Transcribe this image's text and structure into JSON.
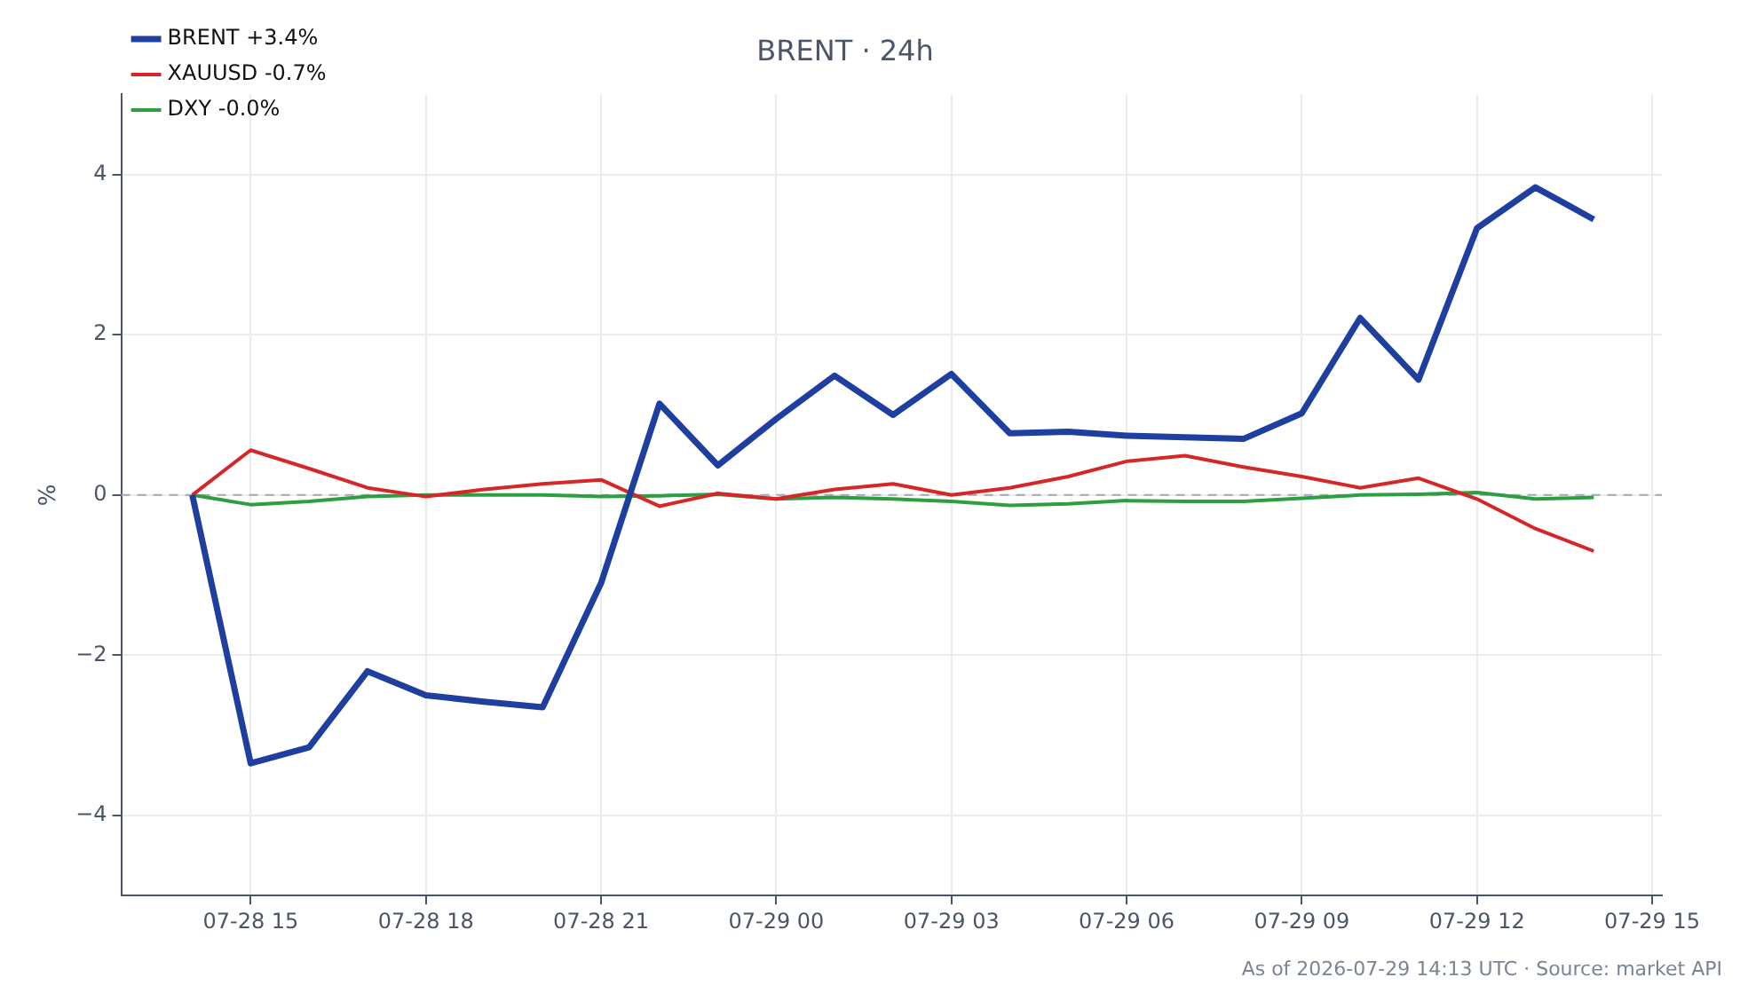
{
  "chart_data": {
    "type": "line",
    "title": "BRENT · 24h",
    "ylabel": "%",
    "x": [
      "2026-07-28T14:00",
      "2026-07-28T15:00",
      "2026-07-28T16:00",
      "2026-07-28T17:00",
      "2026-07-28T18:00",
      "2026-07-28T19:00",
      "2026-07-28T20:00",
      "2026-07-28T21:00",
      "2026-07-28T22:00",
      "2026-07-28T23:00",
      "2026-07-29T00:00",
      "2026-07-29T01:00",
      "2026-07-29T02:00",
      "2026-07-29T03:00",
      "2026-07-29T04:00",
      "2026-07-29T05:00",
      "2026-07-29T06:00",
      "2026-07-29T07:00",
      "2026-07-29T08:00",
      "2026-07-29T09:00",
      "2026-07-29T10:00",
      "2026-07-29T11:00",
      "2026-07-29T12:00",
      "2026-07-29T13:00",
      "2026-07-29T14:00"
    ],
    "series": [
      {
        "name": "BRENT +3.4%",
        "color": "#1f3fa0",
        "values": [
          0,
          -3.35,
          -3.15,
          -2.2,
          -2.5,
          -2.58,
          -2.65,
          -1.1,
          1.14,
          0.37,
          0.95,
          1.49,
          1.0,
          1.51,
          0.77,
          0.79,
          0.74,
          0.72,
          0.7,
          1.02,
          2.21,
          1.44,
          3.33,
          3.84,
          3.44
        ]
      },
      {
        "name": "XAUUSD -0.7%",
        "color": "#d62728",
        "values": [
          0,
          0.56,
          0.33,
          0.09,
          -0.02,
          0.07,
          0.14,
          0.19,
          -0.14,
          0.02,
          -0.05,
          0.07,
          0.14,
          0,
          0.09,
          0.23,
          0.42,
          0.49,
          0.35,
          0.23,
          0.09,
          0.21,
          -0.05,
          -0.42,
          -0.7
        ]
      },
      {
        "name": "DXY -0.0%",
        "color": "#2ca040",
        "values": [
          0,
          -0.12,
          -0.08,
          -0.02,
          0,
          0,
          0,
          -0.02,
          -0.01,
          0.01,
          -0.05,
          -0.03,
          -0.05,
          -0.08,
          -0.13,
          -0.11,
          -0.07,
          -0.08,
          -0.08,
          -0.04,
          0,
          0.01,
          0.03,
          -0.05,
          -0.03
        ]
      }
    ],
    "xlim": [
      "2026-07-28T12:47",
      "2026-07-29T15:10"
    ],
    "xticks": [
      {
        "value": "2026-07-28T15:00",
        "label": "07-28 15"
      },
      {
        "value": "2026-07-28T18:00",
        "label": "07-28 18"
      },
      {
        "value": "2026-07-28T21:00",
        "label": "07-28 21"
      },
      {
        "value": "2026-07-29T00:00",
        "label": "07-29 00"
      },
      {
        "value": "2026-07-29T03:00",
        "label": "07-29 03"
      },
      {
        "value": "2026-07-29T06:00",
        "label": "07-29 06"
      },
      {
        "value": "2026-07-29T09:00",
        "label": "07-29 09"
      },
      {
        "value": "2026-07-29T12:00",
        "label": "07-29 12"
      },
      {
        "value": "2026-07-29T15:00",
        "label": "07-29 15"
      }
    ],
    "ylim": [
      -5,
      5
    ],
    "yticks": [
      {
        "value": -4,
        "label": "−4"
      },
      {
        "value": -2,
        "label": "−2"
      },
      0,
      2,
      4
    ],
    "ref_lines": [
      {
        "axis": "y",
        "value": 0,
        "color": "#a0a8b8",
        "line_style": "dashed"
      }
    ],
    "grid": true,
    "legend": "top left",
    "marker": "none",
    "line_style": "solid",
    "annotations": [
      "As of 2026-07-29 14:13 UTC · Source: market API"
    ]
  }
}
